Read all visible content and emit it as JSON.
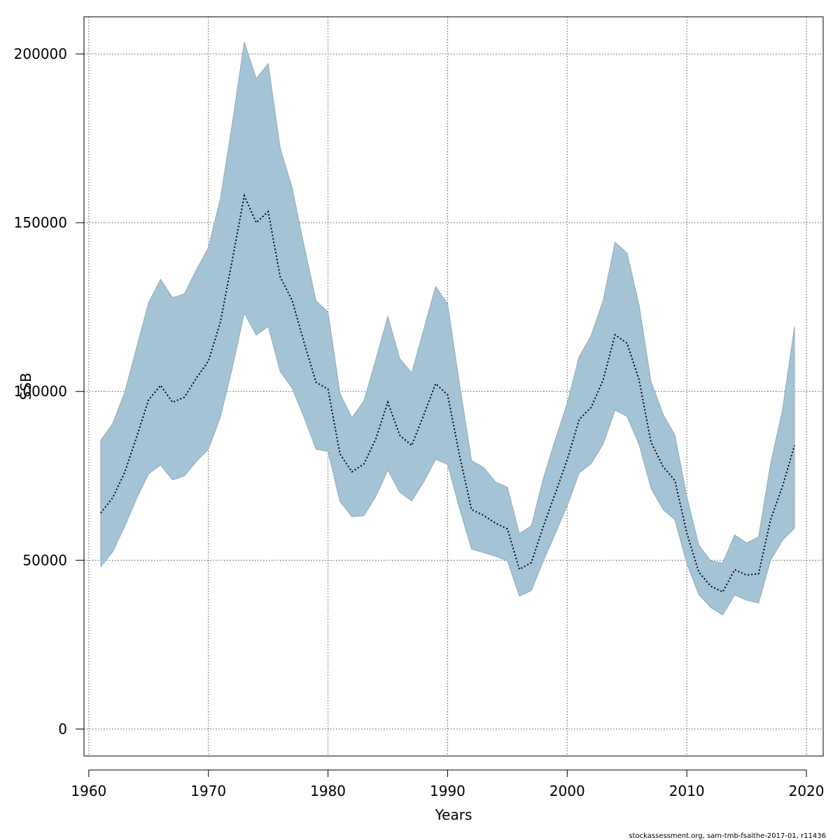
{
  "chart_data": {
    "type": "area",
    "title": "",
    "xlabel": "Years",
    "ylabel": "SSB",
    "xlim": [
      1959.6,
      2021.4
    ],
    "ylim": [
      -8000,
      211000
    ],
    "grid": true,
    "x_ticks": [
      1960,
      1970,
      1980,
      1990,
      2000,
      2010,
      2020
    ],
    "y_ticks": [
      0,
      50000,
      100000,
      150000,
      200000
    ],
    "x_tick_labels": [
      "1960",
      "1970",
      "1980",
      "1990",
      "2000",
      "2010",
      "2020"
    ],
    "y_tick_labels": [
      "0",
      "50000",
      "100000",
      "150000",
      "200000"
    ],
    "x": [
      1961,
      1962,
      1963,
      1964,
      1965,
      1966,
      1967,
      1968,
      1969,
      1970,
      1971,
      1972,
      1973,
      1974,
      1975,
      1976,
      1977,
      1978,
      1979,
      1980,
      1981,
      1982,
      1983,
      1984,
      1985,
      1986,
      1987,
      1988,
      1989,
      1990,
      1991,
      1992,
      1993,
      1994,
      1995,
      1996,
      1997,
      1998,
      1999,
      2000,
      2001,
      2002,
      2003,
      2004,
      2005,
      2006,
      2007,
      2008,
      2009,
      2010,
      2011,
      2012,
      2013,
      2014,
      2015,
      2016,
      2017,
      2018,
      2019
    ],
    "series": [
      {
        "values": [
          64000,
          68500,
          76000,
          86500,
          97500,
          101800,
          96800,
          98300,
          104000,
          109000,
          120500,
          139000,
          158000,
          150000,
          153300,
          134000,
          127000,
          114500,
          102700,
          100700,
          81500,
          76200,
          78500,
          86000,
          96800,
          87000,
          84000,
          93000,
          102300,
          99000,
          81000,
          65000,
          63300,
          61000,
          59300,
          47300,
          49300,
          60000,
          69800,
          79800,
          91700,
          95300,
          103400,
          116800,
          114300,
          103500,
          85000,
          77800,
          73600,
          58000,
          46500,
          42300,
          40600,
          47200,
          45600,
          46000,
          62000,
          71900,
          84000
        ],
        "lower": [
          48100,
          52500,
          60000,
          68300,
          75600,
          78200,
          73800,
          75000,
          79300,
          82900,
          92400,
          107000,
          123200,
          116700,
          119300,
          105900,
          101000,
          92300,
          82900,
          82200,
          67400,
          62900,
          63200,
          68900,
          76700,
          70100,
          67600,
          73200,
          79900,
          78400,
          65300,
          53300,
          52300,
          51200,
          49800,
          39400,
          41000,
          49800,
          57900,
          66100,
          75900,
          78600,
          84400,
          94500,
          92600,
          84400,
          71300,
          65100,
          62000,
          49000,
          39800,
          36000,
          33800,
          39700,
          38200,
          37300,
          50000,
          55900,
          59500
        ],
        "upper": [
          85500,
          90500,
          99700,
          113000,
          126300,
          133200,
          127800,
          128900,
          136100,
          142600,
          157100,
          179400,
          203500,
          192700,
          197100,
          172100,
          160300,
          143200,
          126800,
          123600,
          99400,
          92200,
          97200,
          109500,
          122200,
          109700,
          105500,
          118300,
          131100,
          125900,
          102100,
          79500,
          77500,
          73200,
          71600,
          57800,
          60200,
          74200,
          85700,
          96500,
          110300,
          116600,
          126900,
          144200,
          141000,
          125700,
          103000,
          93300,
          87100,
          68800,
          54500,
          49800,
          49200,
          57500,
          55100,
          56900,
          78600,
          94600,
          119200
        ]
      }
    ],
    "colors": {
      "band_fill": "#a4c4d6",
      "band_stroke": "#8fa9b8",
      "line": "#000000",
      "grid": "#555555"
    }
  },
  "footer": {
    "credit": "stockassessment.org, sam-tmb-fsaithe-2017-01, r11436"
  }
}
